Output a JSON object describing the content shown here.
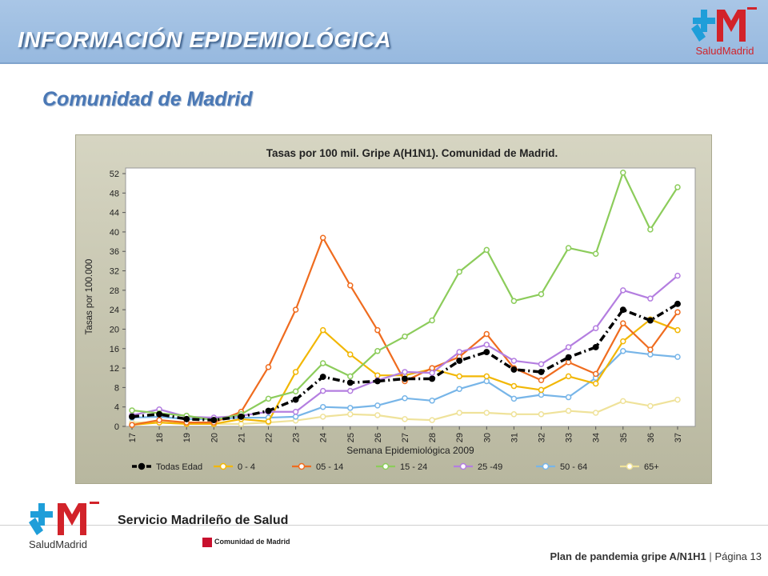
{
  "header": {
    "title": "INFORMACIÓN EPIDEMIOLÓGICA",
    "logo_text": "SaludMadrid"
  },
  "subtitle": "Comunidad de Madrid",
  "footer": {
    "org_name": "Servicio Madrileño de Salud",
    "logo_text": "SaludMadrid",
    "comunidad": "Comunidad de Madrid",
    "plan_text": "Plan de pandemia gripe A/N1H1",
    "separator": "|",
    "page": "Página 13"
  },
  "colors": {
    "header_bg": "#9fbfe3",
    "brand_blue": "#1f9ed9",
    "brand_red": "#d2232a",
    "subtitle": "#4a78b5"
  },
  "chart_data": {
    "type": "line",
    "title": "Tasas por 100 mil. Gripe A(H1N1). Comunidad de Madrid.",
    "xlabel": "Semana Epidemiológica 2009",
    "ylabel": "Tasas por 100.000",
    "ylim": [
      0,
      52
    ],
    "yticks": [
      0,
      4,
      8,
      12,
      16,
      20,
      24,
      28,
      32,
      36,
      40,
      44,
      48,
      52
    ],
    "grid": false,
    "legend": "bottom",
    "x": [
      "17",
      "18",
      "19",
      "20",
      "21",
      "22",
      "23",
      "24",
      "25",
      "26",
      "27",
      "28",
      "29",
      "30",
      "31",
      "32",
      "33",
      "34",
      "35",
      "36",
      "37"
    ],
    "series": [
      {
        "name": "Todas Edad",
        "color": "#000000",
        "dashed": true,
        "values": [
          2.0,
          2.5,
          1.5,
          1.3,
          2.0,
          3.2,
          5.5,
          10.2,
          9.0,
          9.3,
          9.8,
          9.8,
          13.5,
          15.3,
          11.7,
          11.2,
          14.2,
          16.3,
          24.0,
          21.8,
          25.2
        ]
      },
      {
        "name": "0 - 4",
        "color": "#f2b705",
        "dashed": false,
        "values": [
          0.3,
          0.8,
          0.5,
          0.5,
          1.5,
          1.0,
          11.2,
          19.8,
          14.8,
          10.5,
          10.5,
          11.8,
          10.3,
          10.3,
          8.3,
          7.5,
          10.3,
          8.8,
          17.5,
          22.0,
          19.8
        ]
      },
      {
        "name": "05 - 14",
        "color": "#ef6c1f",
        "dashed": false,
        "values": [
          0.3,
          1.3,
          0.8,
          0.8,
          3.0,
          12.2,
          24.0,
          38.8,
          29.0,
          19.8,
          9.3,
          12.0,
          14.3,
          19.0,
          12.0,
          9.5,
          13.2,
          10.8,
          21.2,
          15.8,
          23.5
        ]
      },
      {
        "name": "15 - 24",
        "color": "#8ccc5b",
        "dashed": false,
        "values": [
          3.3,
          2.7,
          2.2,
          1.3,
          2.5,
          5.7,
          7.2,
          13.0,
          10.3,
          15.5,
          18.5,
          21.8,
          31.8,
          36.3,
          25.8,
          27.2,
          36.7,
          35.5,
          52.2,
          40.5,
          49.2
        ]
      },
      {
        "name": "25 -49",
        "color": "#b47ee0",
        "dashed": false,
        "values": [
          2.3,
          3.5,
          2.0,
          1.8,
          2.2,
          3.0,
          3.0,
          7.3,
          7.3,
          9.5,
          11.2,
          11.0,
          15.3,
          16.8,
          13.5,
          12.8,
          16.3,
          20.2,
          28.0,
          26.3,
          31.0
        ]
      },
      {
        "name": "50 - 64",
        "color": "#77b5e8",
        "dashed": false,
        "values": [
          1.8,
          2.0,
          1.5,
          1.5,
          1.8,
          1.8,
          2.0,
          4.0,
          3.8,
          4.3,
          5.8,
          5.3,
          7.7,
          9.3,
          5.7,
          6.5,
          6.0,
          10.0,
          15.5,
          14.8,
          14.3
        ]
      },
      {
        "name": "65+",
        "color": "#efe29a",
        "dashed": false,
        "values": [
          0.8,
          0.8,
          0.5,
          0.5,
          0.5,
          0.8,
          1.2,
          2.0,
          2.5,
          2.3,
          1.5,
          1.3,
          2.8,
          2.8,
          2.5,
          2.5,
          3.2,
          2.8,
          5.2,
          4.2,
          5.5
        ]
      }
    ]
  }
}
